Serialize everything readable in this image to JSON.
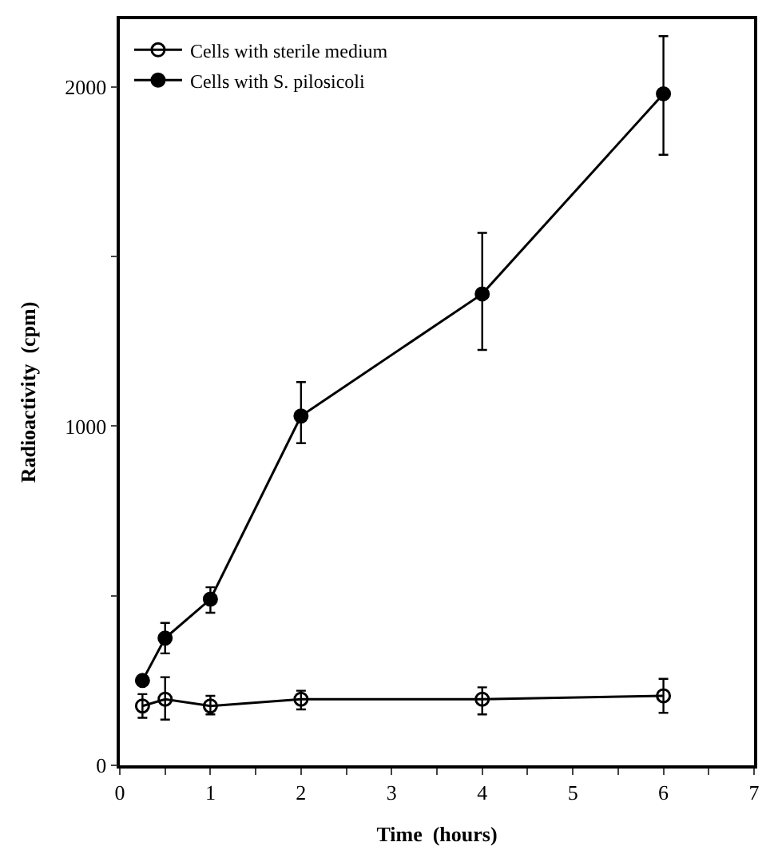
{
  "chart_data": {
    "type": "line",
    "xlabel": "Time  (hours)",
    "ylabel": "Radioactivity  (cpm)",
    "series": [
      {
        "name": "Cells with sterile medium",
        "color": "#000000",
        "marker": "circle-open",
        "x": [
          0.25,
          0.5,
          1,
          2,
          4,
          6
        ],
        "values": [
          175,
          195,
          175,
          195,
          195,
          205
        ],
        "errors": [
          [
            140,
            210
          ],
          [
            135,
            260
          ],
          [
            150,
            205
          ],
          [
            165,
            220
          ],
          [
            150,
            230
          ],
          [
            155,
            255
          ]
        ]
      },
      {
        "name": "Cells with S. pilosicoli",
        "color": "#000000",
        "marker": "circle",
        "x": [
          0.25,
          0.5,
          1,
          2,
          4,
          6
        ],
        "values": [
          250,
          375,
          490,
          1030,
          1390,
          1980
        ],
        "errors": [
          null,
          [
            330,
            420
          ],
          [
            450,
            525
          ],
          [
            950,
            1130
          ],
          [
            1225,
            1570
          ],
          [
            1800,
            2150
          ]
        ]
      }
    ],
    "xlim": [
      0,
      7
    ],
    "ylim": [
      0,
      2200
    ],
    "xticks": [
      0,
      {
        "value": 0.5,
        "label": null
      },
      1,
      {
        "value": 1.5,
        "label": null
      },
      2,
      {
        "value": 2.5,
        "label": null
      },
      3,
      {
        "value": 3.5,
        "label": null
      },
      4,
      {
        "value": 4.5,
        "label": null
      },
      5,
      {
        "value": 5.5,
        "label": null
      },
      6,
      {
        "value": 6.5,
        "label": null
      },
      7
    ],
    "yticks": [
      0,
      {
        "value": 500,
        "label": null
      },
      1000,
      {
        "value": 1500,
        "label": null
      },
      2000
    ],
    "legend": "top left",
    "line_style": "solid"
  }
}
